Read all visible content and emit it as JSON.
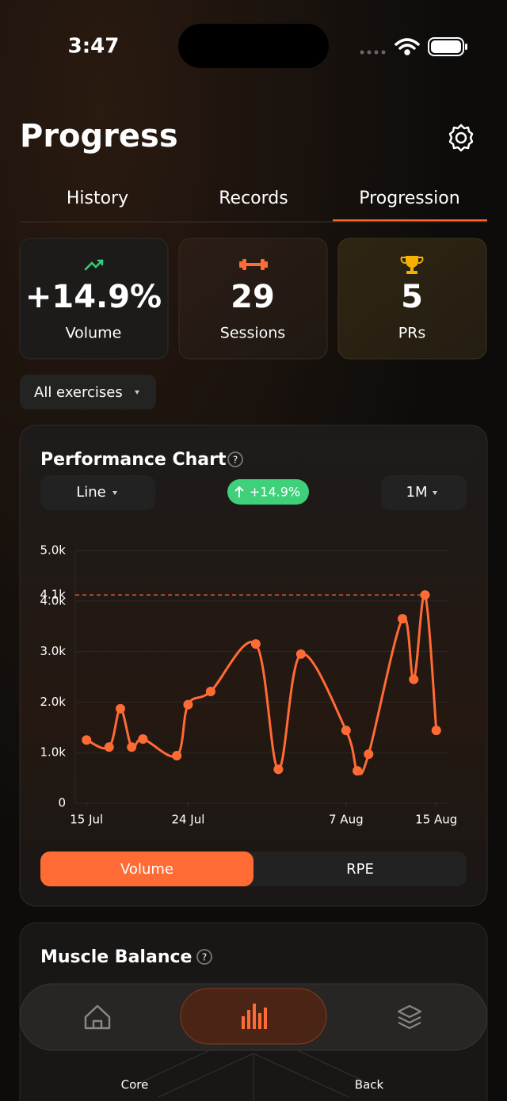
{
  "status_bar": {
    "time": "3:47"
  },
  "header": {
    "title": "Progress"
  },
  "tabs": {
    "items": [
      "History",
      "Records",
      "Progression"
    ],
    "active": 2
  },
  "stats": [
    {
      "value": "+14.9%",
      "label": "Volume"
    },
    {
      "value": "29",
      "label": "Sessions"
    },
    {
      "value": "5",
      "label": "PRs"
    }
  ],
  "filter": "All exercises",
  "performance": {
    "title": "Performance Chart",
    "chart_type_select": "Line",
    "change_badge": "+14.9%",
    "range_select": "1M",
    "toggles": [
      "Volume",
      "RPE"
    ],
    "active_toggle": 0
  },
  "chart_data": {
    "type": "line",
    "x": [
      "15 Jul",
      "17 Jul",
      "18 Jul",
      "19 Jul",
      "20 Jul",
      "23 Jul",
      "24 Jul",
      "26 Jul",
      "30 Jul",
      "1 Aug",
      "3 Aug",
      "7 Aug",
      "8 Aug",
      "9 Aug",
      "12 Aug",
      "13 Aug",
      "14 Aug",
      "15 Aug"
    ],
    "series": [
      {
        "name": "Volume",
        "color": "#ff6b35",
        "values": [
          1250,
          1110,
          1870,
          1110,
          1270,
          940,
          1950,
          2210,
          3150,
          670,
          2950,
          1440,
          640,
          970,
          3650,
          2450,
          4120,
          1440
        ]
      }
    ],
    "xlim": [
      "14 Jul",
      "16 Aug"
    ],
    "xticks": [
      "15 Jul",
      "24 Jul",
      "7 Aug",
      "15 Aug"
    ],
    "ylim": [
      0,
      5000
    ],
    "yticks": [
      0,
      {
        "value": 1000,
        "label": "1.0k"
      },
      {
        "value": 2000,
        "label": "2.0k"
      },
      {
        "value": 3000,
        "label": "3.0k"
      },
      {
        "value": 4000,
        "label": "4.0k"
      },
      {
        "value": 5000,
        "label": "5.0k"
      }
    ],
    "max_line": {
      "value": 4120,
      "label": "4.1k"
    },
    "grid": true
  },
  "muscle_balance": {
    "title": "Muscle Balance",
    "axis_labels": [
      "Core",
      "Back"
    ]
  }
}
